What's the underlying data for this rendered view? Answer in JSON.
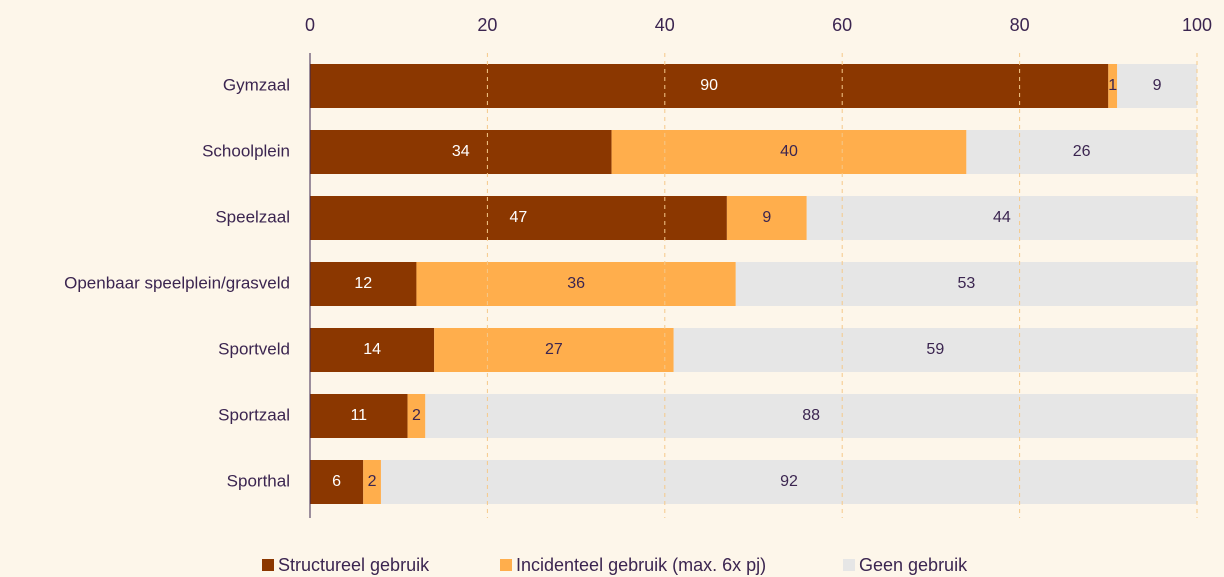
{
  "chart_data": {
    "type": "stacked_bar_horizontal",
    "categories": [
      "Gymzaal",
      "Schoolplein",
      "Speelzaal",
      "Openbaar speelplein/grasveld",
      "Sportveld",
      "Sportzaal",
      "Sporthal"
    ],
    "series": [
      {
        "name": "Structureel gebruik",
        "color": "#8b3700",
        "values": [
          90,
          34,
          47,
          12,
          14,
          11,
          6
        ]
      },
      {
        "name": "Incidenteel gebruik (max. 6x pj)",
        "color": "#ffae4c",
        "values": [
          1,
          40,
          9,
          36,
          27,
          2,
          2
        ]
      },
      {
        "name": "Geen gebruik",
        "color": "#e6e6e6",
        "values": [
          9,
          26,
          44,
          53,
          59,
          88,
          92
        ]
      }
    ],
    "xlim": [
      0,
      100
    ],
    "xticks": [
      0,
      20,
      40,
      60,
      80,
      100
    ],
    "grid": true,
    "legend": "bottom"
  }
}
